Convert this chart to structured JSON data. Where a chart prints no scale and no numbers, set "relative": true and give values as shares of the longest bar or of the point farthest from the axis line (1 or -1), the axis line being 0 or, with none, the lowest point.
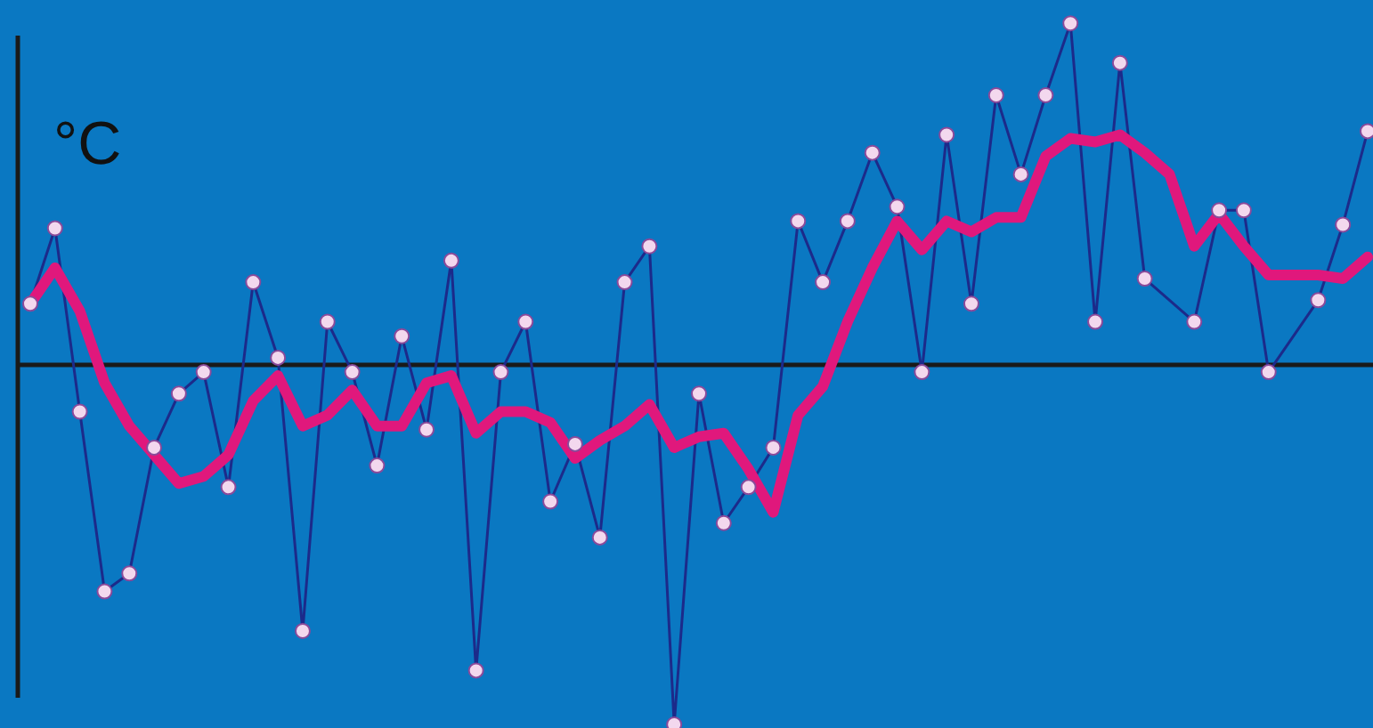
{
  "chart_data": {
    "type": "line",
    "relative": true,
    "ylabel": "°C",
    "categories": [
      null,
      null,
      null,
      null,
      null,
      null,
      null,
      null,
      null,
      null,
      null,
      null,
      null,
      null,
      null,
      null,
      null,
      null,
      null,
      null,
      null,
      null,
      null,
      null,
      null,
      null,
      null,
      null,
      null,
      null,
      null,
      null,
      null,
      null,
      null,
      null,
      null,
      null,
      null,
      null,
      null,
      null,
      null,
      null,
      null,
      null,
      null,
      null,
      null,
      null,
      null,
      null,
      null,
      null,
      null
    ],
    "series": [
      {
        "color": "#1c2a8a",
        "marker": "circle",
        "values": [
          0.17,
          0.38,
          -0.13,
          -0.63,
          -0.58,
          -0.23,
          -0.08,
          -0.02,
          -0.34,
          0.23,
          0.02,
          -0.74,
          0.12,
          -0.02,
          -0.28,
          0.08,
          -0.18,
          0.29,
          -0.85,
          -0.02,
          0.12,
          -0.38,
          -0.22,
          -0.48,
          0.23,
          0.33,
          -1,
          -0.08,
          -0.44,
          -0.34,
          -0.23,
          0.4,
          0.23,
          0.4,
          0.59,
          0.44,
          -0.02,
          0.64,
          0.17,
          0.75,
          0.53,
          0.75,
          0.95,
          0.12,
          0.84,
          0.24,
          null,
          0.12,
          0.43,
          0.43,
          -0.02,
          null,
          0.18,
          0.39,
          0.65
        ]
      },
      {
        "color": "#e0187c",
        "marker": "none",
        "values": [
          0.17,
          0.27,
          0.15,
          -0.05,
          -0.17,
          -0.25,
          -0.33,
          -0.31,
          -0.25,
          -0.1,
          -0.03,
          -0.17,
          -0.14,
          -0.07,
          -0.17,
          -0.17,
          -0.05,
          -0.03,
          -0.19,
          -0.13,
          -0.13,
          -0.16,
          -0.26,
          -0.21,
          -0.17,
          -0.11,
          -0.23,
          -0.2,
          -0.19,
          -0.29,
          -0.41,
          -0.14,
          -0.06,
          0.12,
          0.27,
          0.4,
          0.32,
          0.4,
          0.37,
          0.41,
          0.41,
          0.58,
          0.63,
          0.62,
          0.64,
          0.59,
          0.53,
          0.33,
          0.42,
          0.33,
          0.25,
          0.25,
          0.25,
          0.24,
          0.3
        ]
      }
    ]
  }
}
